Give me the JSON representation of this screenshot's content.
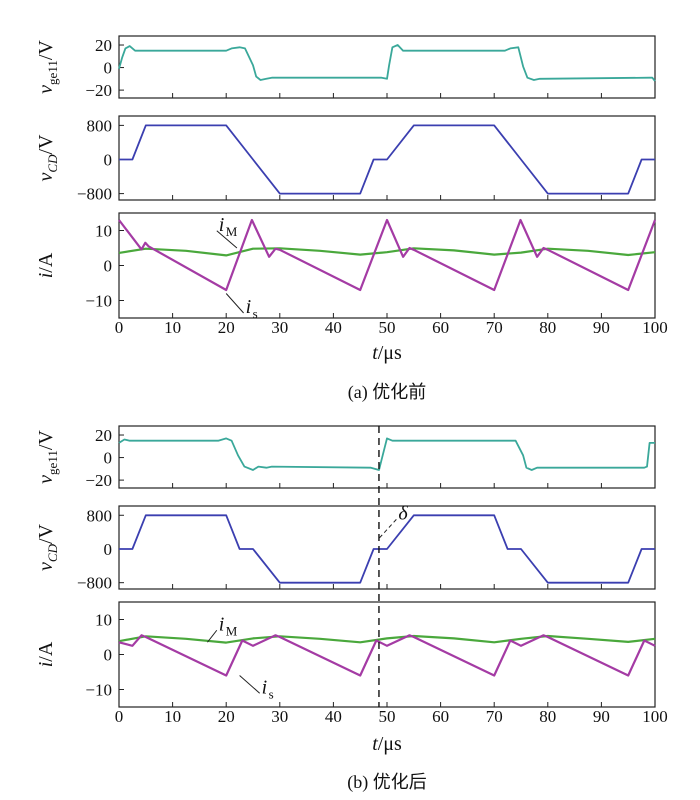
{
  "chart_data": [
    {
      "type": "line",
      "group": "(a) 优化前",
      "caption": "(a)  优化前",
      "x_label_var": "t",
      "x_label_unit": "/μs",
      "xlim": [
        0,
        100
      ],
      "x_ticks": [
        "0",
        "10",
        "20",
        "30",
        "40",
        "50",
        "60",
        "70",
        "80",
        "90",
        "100"
      ],
      "panels": [
        {
          "id": "vge",
          "ylabel_var": "v",
          "ylabel_sub": "ge11",
          "ylabel_unit": "/V",
          "ylim": [
            -27,
            28
          ],
          "y_ticks": [
            "20",
            "0",
            "−20"
          ],
          "y_tick_values": [
            20,
            0,
            -20
          ],
          "series": [
            {
              "color": "#3aa89a",
              "x": [
                0,
                0.6,
                1.2,
                2,
                3,
                19,
                20,
                21,
                22.5,
                23.5,
                25,
                25.6,
                26.4,
                27.5,
                28.5,
                49,
                50,
                50.4,
                51,
                52,
                53,
                72,
                73,
                74.5,
                75.4,
                76.2,
                77.4,
                78.5,
                99,
                99.5,
                100
              ],
              "y": [
                -1,
                9,
                17,
                19,
                15,
                15,
                15,
                17,
                18,
                17,
                2,
                -8,
                -11,
                -10,
                -9,
                -9,
                -10,
                2,
                18,
                20,
                15,
                15,
                17,
                18,
                1,
                -9,
                -11,
                -10,
                -9,
                -9,
                -12
              ]
            }
          ]
        },
        {
          "id": "vcd",
          "ylabel_var": "v",
          "ylabel_sub": "CD",
          "ylabel_unit": "/V",
          "ylim": [
            -950,
            1020
          ],
          "y_ticks": [
            "800",
            "0",
            "−800"
          ],
          "y_tick_values": [
            800,
            0,
            -800
          ],
          "series": [
            {
              "color": "#3b3fb0",
              "x": [
                0,
                2.5,
                5,
                20,
                25,
                30,
                45,
                47.5,
                50,
                55,
                70,
                75,
                80,
                95,
                97.5,
                100
              ],
              "y": [
                0,
                0,
                800,
                800,
                0,
                -800,
                -800,
                0,
                0,
                800,
                800,
                0,
                -800,
                -800,
                0,
                0
              ]
            }
          ]
        },
        {
          "id": "i",
          "ylabel_var": "i",
          "ylabel_sub": "",
          "ylabel_unit": "/A",
          "ylim": [
            -15,
            15
          ],
          "y_ticks": [
            "10",
            "0",
            "−10"
          ],
          "y_tick_values": [
            10,
            0,
            -10
          ],
          "series": [
            {
              "color": "#4aa83c",
              "name": "i",
              "name_sub": "M",
              "x": [
                0,
                5,
                12.5,
                20,
                25,
                30,
                37.5,
                45,
                50,
                55,
                62.5,
                70,
                75,
                80,
                87.5,
                95,
                100
              ],
              "y": [
                3.6,
                4.8,
                4.2,
                2.9,
                4.8,
                4.9,
                4.2,
                3.1,
                3.8,
                4.9,
                4.3,
                3.1,
                3.7,
                4.8,
                4.2,
                3.0,
                3.8
              ]
            },
            {
              "color": "#a43ba4",
              "name": "i",
              "name_sub": "s",
              "x": [
                0,
                4.2,
                4.9,
                5.5,
                20,
                24.8,
                28,
                29.2,
                30,
                45,
                50,
                53,
                54.2,
                55,
                70,
                74.9,
                78,
                79.2,
                80,
                95,
                100
              ],
              "y": [
                13,
                4.6,
                6.5,
                5.5,
                -7,
                13,
                2.5,
                4.8,
                4.5,
                -7,
                13,
                2.5,
                5,
                4.5,
                -7,
                13,
                2.5,
                5,
                4.5,
                -7,
                13
              ]
            }
          ],
          "annotations": [
            {
              "text": "i",
              "sub": "M",
              "at": [
                17.5,
                10.5
              ],
              "to": [
                22,
                5
              ]
            },
            {
              "text": "i",
              "sub": "s",
              "at": [
                22.5,
                -13
              ],
              "to": [
                20,
                -8
              ]
            }
          ]
        }
      ]
    },
    {
      "type": "line",
      "group": "(b) 优化后",
      "caption": "(b)  优化后",
      "x_label_var": "t",
      "x_label_unit": "/μs",
      "xlim": [
        0,
        100
      ],
      "x_ticks": [
        "0",
        "10",
        "20",
        "30",
        "40",
        "50",
        "60",
        "70",
        "80",
        "90",
        "100"
      ],
      "panels": [
        {
          "id": "vge",
          "ylabel_var": "v",
          "ylabel_sub": "ge11",
          "ylabel_unit": "/V",
          "ylim": [
            -27,
            28
          ],
          "y_ticks": [
            "20",
            "0",
            "−20"
          ],
          "y_tick_values": [
            20,
            0,
            -20
          ],
          "series": [
            {
              "color": "#3aa89a",
              "x": [
                0,
                1,
                2,
                18.5,
                20,
                21,
                22.2,
                23.4,
                25,
                26,
                27.5,
                28.5,
                47,
                48.5,
                49.2,
                50,
                51,
                52,
                74,
                75.4,
                76,
                77,
                78,
                98,
                98.5,
                99,
                100
              ],
              "y": [
                13,
                16,
                15,
                15,
                17,
                15,
                2,
                -8,
                -11,
                -8,
                -9,
                -8,
                -9,
                -11,
                2,
                17,
                15,
                15,
                15,
                2,
                -9,
                -11,
                -9,
                -9,
                -8,
                13,
                13
              ]
            }
          ]
        },
        {
          "id": "vcd",
          "ylabel_var": "v",
          "ylabel_sub": "CD",
          "ylabel_unit": "/V",
          "ylim": [
            -950,
            1020
          ],
          "y_ticks": [
            "800",
            "0",
            "−800"
          ],
          "y_tick_values": [
            800,
            0,
            -800
          ],
          "series": [
            {
              "color": "#3b3fb0",
              "x": [
                0,
                2.5,
                5,
                20,
                22.5,
                25,
                30,
                45,
                47.5,
                50,
                55,
                70,
                72.5,
                75,
                80,
                95,
                97.5,
                100
              ],
              "y": [
                0,
                0,
                800,
                800,
                0,
                0,
                -800,
                -800,
                0,
                0,
                800,
                800,
                0,
                0,
                -800,
                -800,
                0,
                0
              ]
            }
          ],
          "annotations": [
            {
              "text": "δ",
              "sub": "",
              "at": [
                51,
                750
              ],
              "to": [
                48.5,
                250
              ]
            }
          ]
        },
        {
          "id": "i",
          "ylabel_var": "i",
          "ylabel_sub": "",
          "ylabel_unit": "/A",
          "ylim": [
            -15,
            15
          ],
          "y_ticks": [
            "10",
            "0",
            "−10"
          ],
          "y_tick_values": [
            10,
            0,
            -10
          ],
          "series": [
            {
              "color": "#4aa83c",
              "name": "i",
              "name_sub": "M",
              "x": [
                0,
                5,
                12.5,
                20,
                25,
                30,
                37.5,
                45,
                50,
                55,
                62.5,
                70,
                75,
                80,
                87.5,
                95,
                100
              ],
              "y": [
                3.8,
                5.2,
                4.5,
                3.4,
                4.6,
                5.2,
                4.5,
                3.5,
                4.6,
                5.3,
                4.6,
                3.5,
                4.5,
                5.3,
                4.5,
                3.6,
                4.5
              ]
            },
            {
              "color": "#a43ba4",
              "name": "i",
              "name_sub": "s",
              "x": [
                0,
                2.5,
                4.2,
                5,
                20,
                23,
                25,
                29.2,
                30,
                45,
                48,
                50,
                54.2,
                55,
                70,
                73,
                75,
                79.2,
                80,
                95,
                98,
                100
              ],
              "y": [
                3.5,
                2.5,
                5.5,
                5,
                -6,
                4,
                2.5,
                5.5,
                5,
                -6,
                4,
                2.5,
                5.5,
                5,
                -6,
                4,
                2.5,
                5.5,
                5,
                -6,
                4,
                2.5
              ]
            }
          ],
          "annotations": [
            {
              "text": "i",
              "sub": "M",
              "at": [
                17.5,
                7.5
              ],
              "to": [
                16.5,
                3.5
              ]
            },
            {
              "text": "i",
              "sub": "s",
              "at": [
                25.5,
                -10.5
              ],
              "to": [
                22.5,
                -6
              ]
            }
          ]
        }
      ],
      "marker": {
        "x": 48.5,
        "style": "dashed"
      }
    }
  ]
}
